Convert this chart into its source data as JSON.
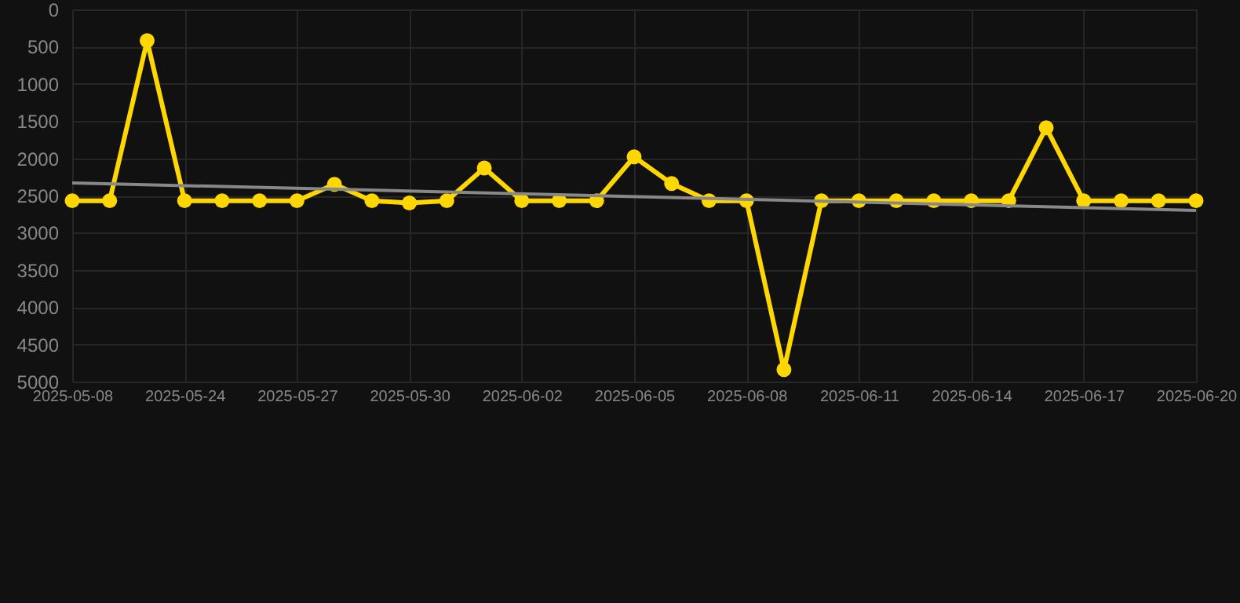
{
  "chart_data": {
    "type": "line",
    "categories": [
      "2025-05-08",
      null,
      null,
      "2025-05-24",
      null,
      null,
      "2025-05-27",
      null,
      null,
      "2025-05-30",
      null,
      null,
      "2025-06-02",
      null,
      null,
      "2025-06-05",
      null,
      null,
      "2025-06-08",
      null,
      null,
      "2025-06-11",
      null,
      null,
      "2025-06-14",
      null,
      null,
      "2025-06-17",
      null,
      null,
      "2025-06-20"
    ],
    "series": [
      {
        "color": "#ffd700",
        "values": [
          2570,
          2570,
          420,
          2570,
          2570,
          2570,
          2570,
          2350,
          2570,
          2600,
          2570,
          2130,
          2570,
          2570,
          2570,
          1980,
          2340,
          2570,
          2570,
          4840,
          2570,
          2570,
          2570,
          2570,
          2570,
          2570,
          1590,
          2570,
          2570,
          2570,
          2570
        ]
      },
      {
        "type": "line",
        "color": "#888888",
        "marker": "none",
        "values": [
          2330,
          null,
          null,
          null,
          null,
          null,
          null,
          null,
          null,
          null,
          null,
          null,
          null,
          null,
          null,
          null,
          null,
          null,
          null,
          null,
          null,
          null,
          null,
          null,
          null,
          null,
          null,
          null,
          null,
          null,
          2700
        ]
      }
    ],
    "ylim": [
      5000,
      0
    ],
    "yticks": [
      0,
      500,
      {
        "value": 1000,
        "label": "1000"
      },
      {
        "value": 1500,
        "label": "1500"
      },
      {
        "value": 2000,
        "label": "2000"
      },
      {
        "value": 2500,
        "label": "2500"
      },
      {
        "value": 3000,
        "label": "3000"
      },
      {
        "value": 3500,
        "label": "3500"
      },
      {
        "value": 4000,
        "label": "4000"
      },
      {
        "value": 4500,
        "label": "4500"
      },
      {
        "value": 5000,
        "label": "5000"
      }
    ],
    "grid": true,
    "marker": "circle",
    "line_style": "solid"
  }
}
